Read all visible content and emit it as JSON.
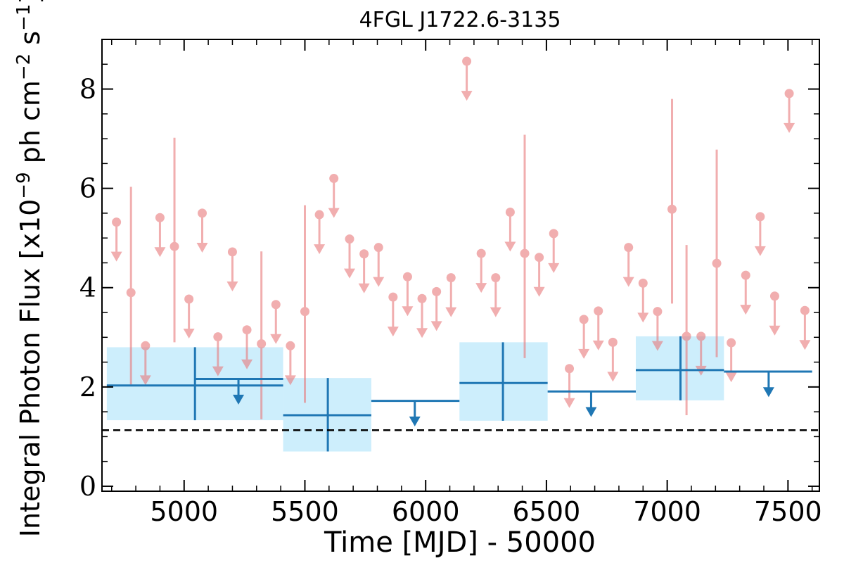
{
  "chart_data": {
    "type": "scatter",
    "title": "4FGL J1722.6-3135",
    "xlabel": "Time [MJD] - 50000",
    "ylabel": "Integral Photon Flux [x10",
    "ylabel_exp1": "−9",
    "ylabel_mid": " ph cm",
    "ylabel_exp2": "−2",
    "ylabel_mid2": " s",
    "ylabel_exp3": "−1",
    "ylabel_end": "]",
    "xlim": [
      4660,
      7630
    ],
    "ylim": [
      -0.1,
      9.0
    ],
    "xticks": [
      5000,
      5500,
      6000,
      6500,
      7000,
      7500
    ],
    "yticks": [
      0,
      2,
      4,
      6,
      8
    ],
    "baseline": 1.13,
    "colors": {
      "short_bins": "#e8797b",
      "long_bins": "#1f77b4",
      "error_box": "#cdeefc",
      "baseline": "#000000"
    },
    "long_bins": [
      {
        "x": 5045,
        "xmin": 4680,
        "xmax": 5410,
        "y": 2.03,
        "ylow": 1.33,
        "yhigh": 2.8,
        "upper_limit": false
      },
      {
        "x": 5225,
        "xmin": 5045,
        "xmax": 5410,
        "y": 2.16,
        "upper_limit": true
      },
      {
        "x": 5595,
        "xmin": 5410,
        "xmax": 5775,
        "y": 1.43,
        "ylow": 0.7,
        "yhigh": 2.18,
        "upper_limit": false
      },
      {
        "x": 5955,
        "xmin": 5775,
        "xmax": 6140,
        "y": 1.72,
        "upper_limit": true
      },
      {
        "x": 6320,
        "xmin": 6140,
        "xmax": 6505,
        "y": 2.08,
        "ylow": 1.32,
        "yhigh": 2.9,
        "upper_limit": false
      },
      {
        "x": 6685,
        "xmin": 6505,
        "xmax": 6870,
        "y": 1.91,
        "upper_limit": true
      },
      {
        "x": 7055,
        "xmin": 6870,
        "xmax": 7235,
        "y": 2.34,
        "ylow": 1.73,
        "yhigh": 3.02,
        "upper_limit": false
      },
      {
        "x": 7420,
        "xmin": 7235,
        "xmax": 7600,
        "y": 2.31,
        "upper_limit": true
      }
    ],
    "short_bins": [
      {
        "x": 4720,
        "y": 5.32,
        "upper_limit": true
      },
      {
        "x": 4780,
        "y": 3.9,
        "ylow": 2.05,
        "yhigh": 6.03,
        "upper_limit": false
      },
      {
        "x": 4840,
        "y": 2.83,
        "upper_limit": true
      },
      {
        "x": 4900,
        "y": 5.41,
        "upper_limit": true
      },
      {
        "x": 4960,
        "y": 4.83,
        "ylow": 2.9,
        "yhigh": 7.02,
        "upper_limit": false
      },
      {
        "x": 5020,
        "y": 3.77,
        "upper_limit": true
      },
      {
        "x": 5075,
        "y": 5.5,
        "upper_limit": true
      },
      {
        "x": 5140,
        "y": 3.01,
        "upper_limit": true
      },
      {
        "x": 5200,
        "y": 4.72,
        "upper_limit": true
      },
      {
        "x": 5260,
        "y": 3.15,
        "upper_limit": true
      },
      {
        "x": 5320,
        "y": 2.87,
        "ylow": 1.35,
        "yhigh": 4.73,
        "upper_limit": false
      },
      {
        "x": 5380,
        "y": 3.66,
        "upper_limit": true
      },
      {
        "x": 5440,
        "y": 2.83,
        "upper_limit": true
      },
      {
        "x": 5500,
        "y": 3.52,
        "ylow": 1.68,
        "yhigh": 5.66,
        "upper_limit": false
      },
      {
        "x": 5560,
        "y": 5.47,
        "upper_limit": true
      },
      {
        "x": 5620,
        "y": 6.2,
        "upper_limit": true
      },
      {
        "x": 5685,
        "y": 4.98,
        "upper_limit": true
      },
      {
        "x": 5745,
        "y": 4.68,
        "upper_limit": true
      },
      {
        "x": 5805,
        "y": 4.81,
        "upper_limit": true
      },
      {
        "x": 5865,
        "y": 3.81,
        "upper_limit": true
      },
      {
        "x": 5925,
        "y": 4.22,
        "upper_limit": true
      },
      {
        "x": 5985,
        "y": 3.78,
        "upper_limit": true
      },
      {
        "x": 6045,
        "y": 3.92,
        "upper_limit": true
      },
      {
        "x": 6105,
        "y": 4.2,
        "upper_limit": true
      },
      {
        "x": 6170,
        "y": 8.56,
        "upper_limit": true
      },
      {
        "x": 6230,
        "y": 4.69,
        "upper_limit": true
      },
      {
        "x": 6290,
        "y": 4.2,
        "upper_limit": true
      },
      {
        "x": 6350,
        "y": 5.52,
        "upper_limit": true
      },
      {
        "x": 6410,
        "y": 4.69,
        "ylow": 2.58,
        "yhigh": 7.08,
        "upper_limit": false
      },
      {
        "x": 6470,
        "y": 4.61,
        "upper_limit": true
      },
      {
        "x": 6530,
        "y": 5.09,
        "upper_limit": true
      },
      {
        "x": 6595,
        "y": 2.37,
        "upper_limit": true
      },
      {
        "x": 6655,
        "y": 3.36,
        "upper_limit": true
      },
      {
        "x": 6715,
        "y": 3.53,
        "upper_limit": true
      },
      {
        "x": 6775,
        "y": 2.9,
        "upper_limit": true
      },
      {
        "x": 6840,
        "y": 4.81,
        "upper_limit": true
      },
      {
        "x": 6900,
        "y": 4.09,
        "upper_limit": true
      },
      {
        "x": 6960,
        "y": 3.52,
        "upper_limit": true
      },
      {
        "x": 7020,
        "y": 5.58,
        "ylow": 3.68,
        "yhigh": 7.8,
        "upper_limit": false
      },
      {
        "x": 7080,
        "y": 3.02,
        "ylow": 1.43,
        "yhigh": 4.86,
        "upper_limit": false
      },
      {
        "x": 7140,
        "y": 3.02,
        "upper_limit": true
      },
      {
        "x": 7205,
        "y": 4.49,
        "ylow": 2.6,
        "yhigh": 6.78,
        "upper_limit": false
      },
      {
        "x": 7265,
        "y": 2.89,
        "upper_limit": true
      },
      {
        "x": 7325,
        "y": 4.25,
        "upper_limit": true
      },
      {
        "x": 7385,
        "y": 5.43,
        "upper_limit": true
      },
      {
        "x": 7445,
        "y": 3.83,
        "upper_limit": true
      },
      {
        "x": 7505,
        "y": 7.91,
        "upper_limit": true
      },
      {
        "x": 7570,
        "y": 3.54,
        "upper_limit": true
      }
    ]
  }
}
